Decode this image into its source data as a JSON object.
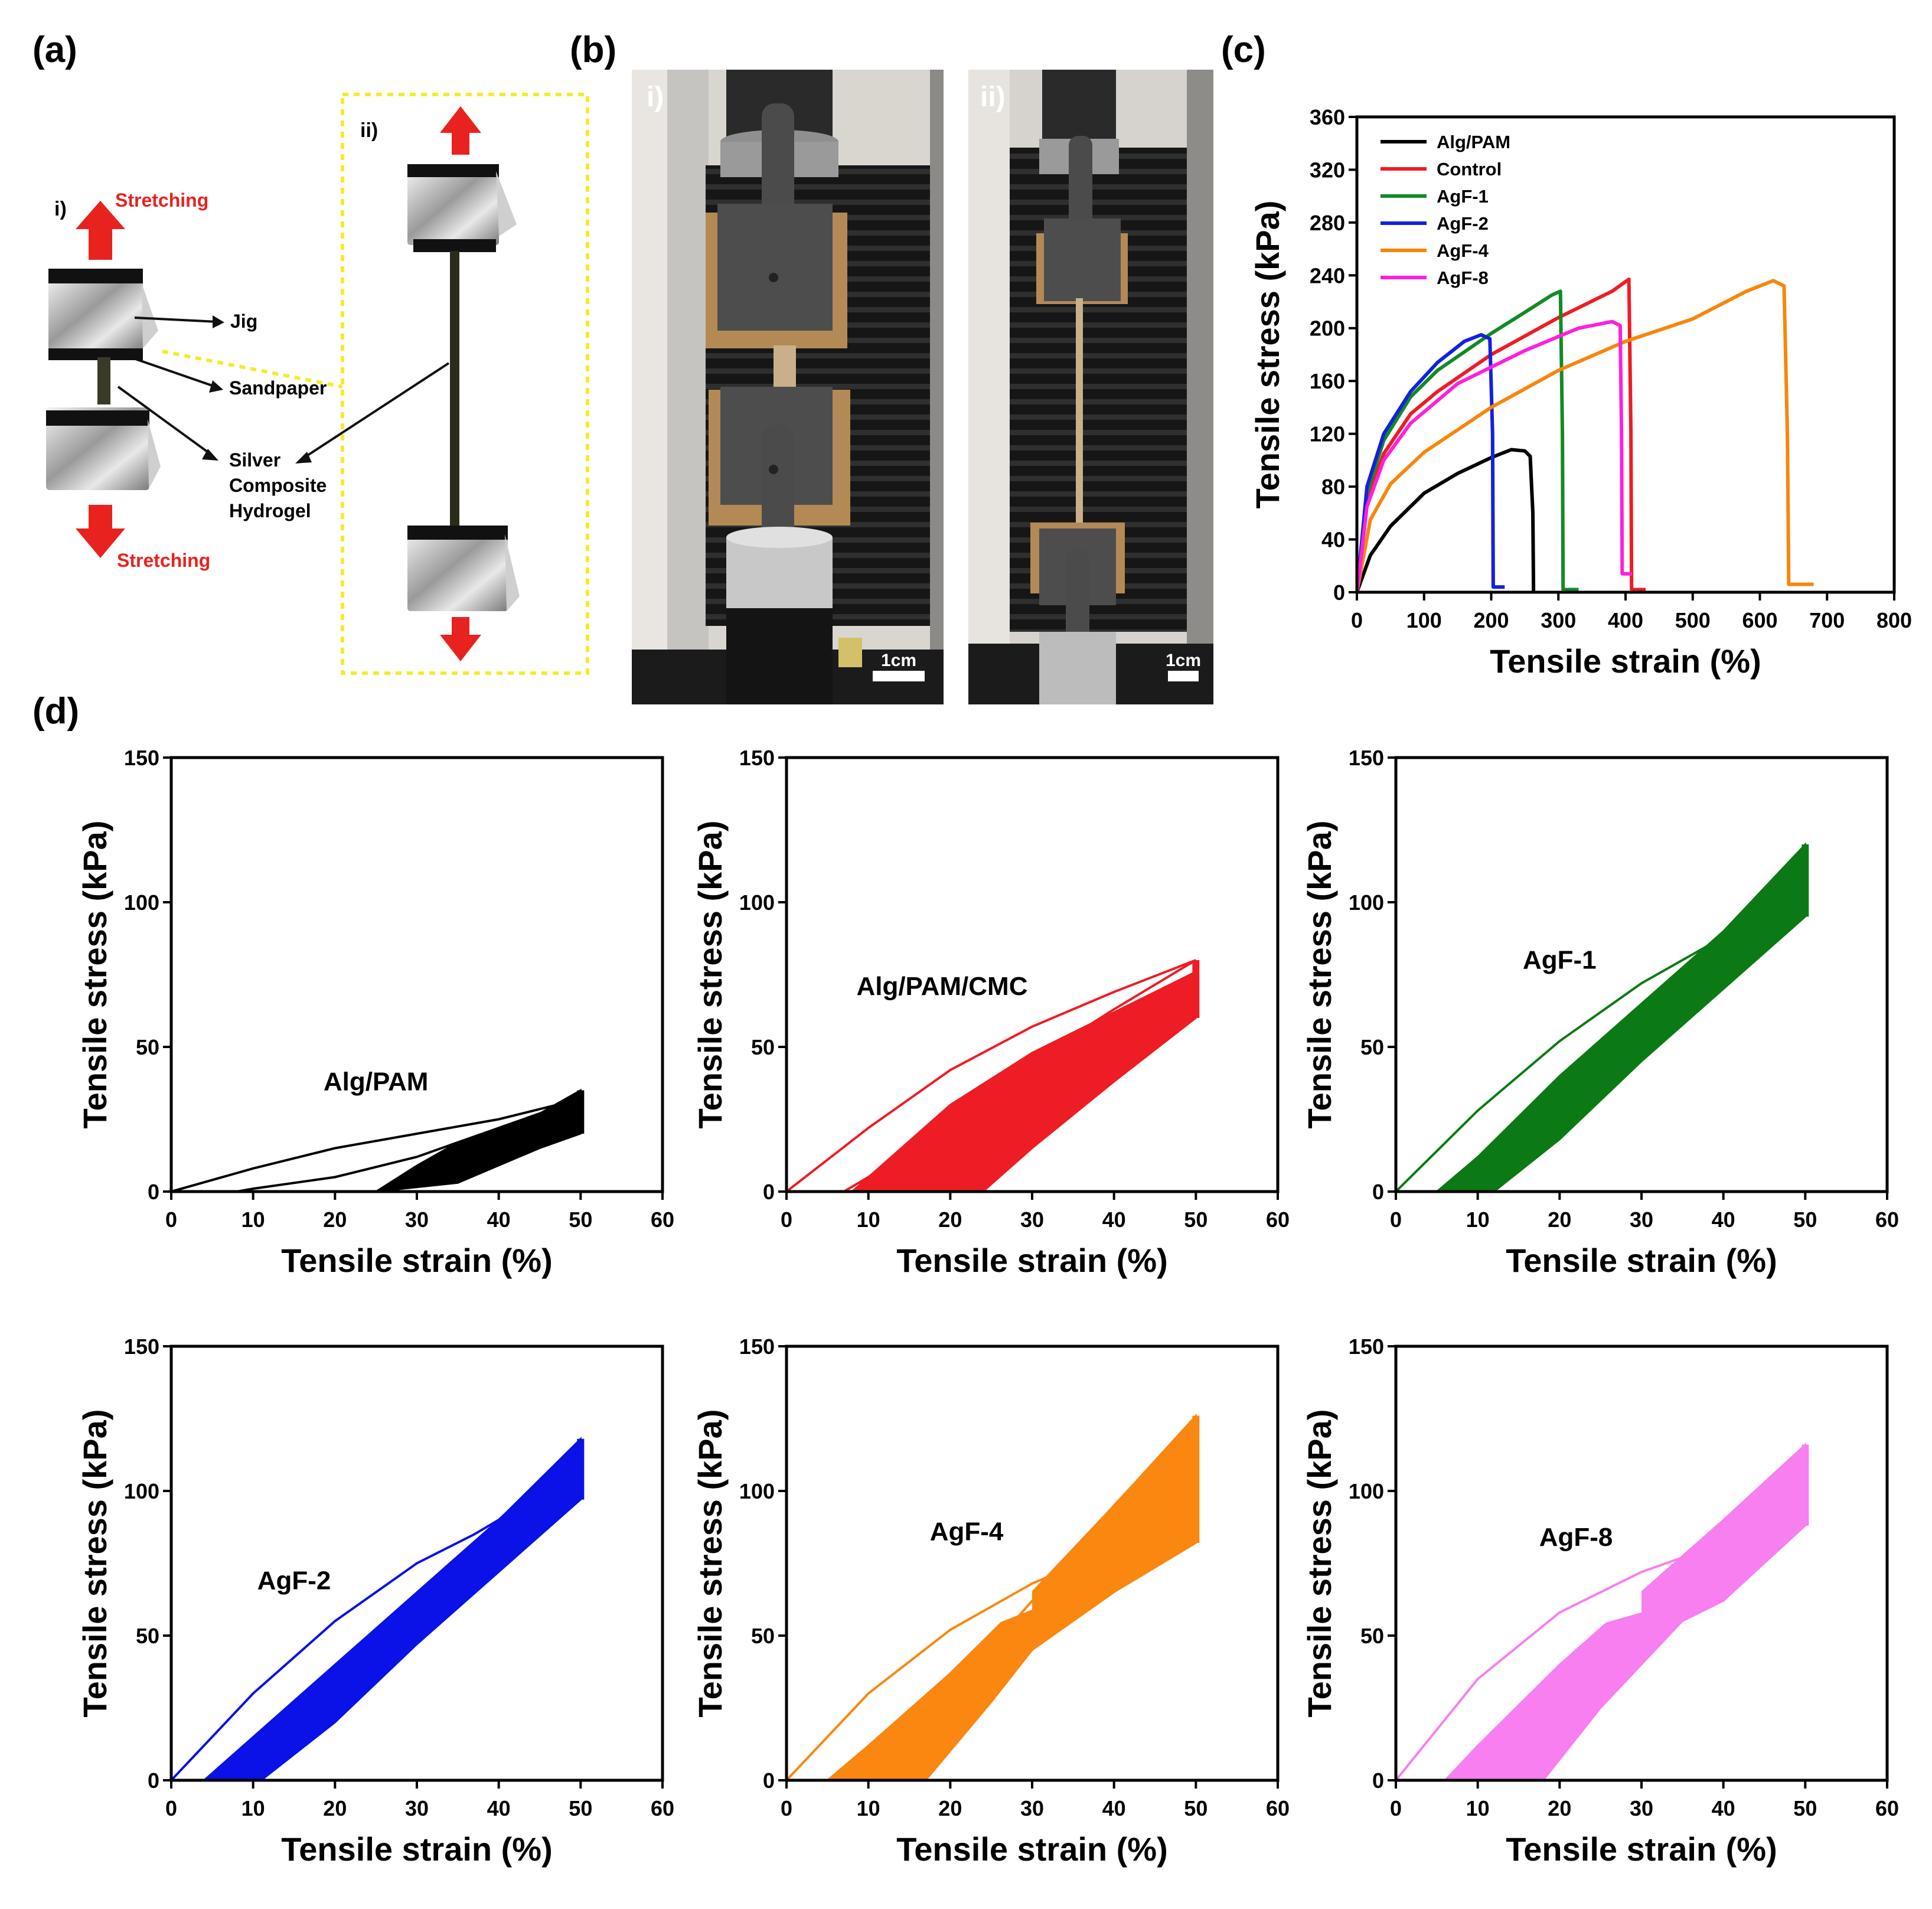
{
  "panel_labels": {
    "a": "(a)",
    "b": "(b)",
    "c": "(c)",
    "d": "(d)"
  },
  "schematic": {
    "sub_i": "i)",
    "sub_ii": "ii)",
    "stretching_top": "Stretching",
    "stretching_bottom": "Stretching",
    "jig": "Jig",
    "sandpaper": "Sandpaper",
    "silver_line1": "Silver",
    "silver_line2": "Composite",
    "silver_line3": "Hydrogel",
    "colors": {
      "arrow": "#e8231f",
      "dashed_box": "#f5ec2a"
    }
  },
  "photos": {
    "photo_i_label": "i)",
    "photo_ii_label": "ii)",
    "scale_i": "1cm",
    "scale_ii": "1cm"
  },
  "chart_data": [
    {
      "id": "c",
      "type": "line",
      "xlabel": "Tensile strain (%)",
      "ylabel": "Tensile stress (kPa)",
      "xlim": [
        0,
        800
      ],
      "ylim": [
        0,
        360
      ],
      "xticks": [
        0,
        100,
        200,
        300,
        400,
        500,
        600,
        700,
        800
      ],
      "yticks": [
        0,
        40,
        80,
        120,
        160,
        200,
        240,
        280,
        320,
        360
      ],
      "legend_position": "top-left",
      "series": [
        {
          "name": "Alg/PAM",
          "color": "#000000",
          "x": [
            0,
            20,
            50,
            100,
            150,
            200,
            230,
            250,
            258,
            262,
            263
          ],
          "y": [
            0,
            28,
            50,
            75,
            90,
            102,
            108,
            107,
            103,
            60,
            0
          ]
        },
        {
          "name": "Control",
          "color": "#ee1c24",
          "x": [
            0,
            15,
            40,
            80,
            120,
            200,
            300,
            380,
            405,
            408,
            409,
            430
          ],
          "y": [
            0,
            70,
            105,
            135,
            152,
            180,
            208,
            228,
            237,
            120,
            2,
            2
          ]
        },
        {
          "name": "AgF-1",
          "color": "#138a24",
          "x": [
            0,
            15,
            40,
            80,
            120,
            200,
            250,
            290,
            303,
            306,
            307,
            330
          ],
          "y": [
            0,
            75,
            115,
            148,
            168,
            196,
            212,
            225,
            228,
            120,
            2,
            2
          ]
        },
        {
          "name": "AgF-2",
          "color": "#1320e0",
          "x": [
            0,
            15,
            40,
            80,
            120,
            160,
            185,
            198,
            202,
            203,
            220
          ],
          "y": [
            0,
            80,
            120,
            152,
            174,
            190,
            195,
            192,
            120,
            4,
            4
          ]
        },
        {
          "name": "AgF-4",
          "color": "#f7860e",
          "x": [
            0,
            20,
            50,
            100,
            200,
            300,
            400,
            500,
            580,
            620,
            636,
            641,
            643,
            680
          ],
          "y": [
            0,
            55,
            82,
            106,
            140,
            168,
            190,
            207,
            228,
            236,
            232,
            120,
            6,
            6
          ]
        },
        {
          "name": "AgF-8",
          "color": "#ff1fdc",
          "x": [
            0,
            15,
            40,
            80,
            150,
            250,
            330,
            380,
            392,
            394,
            395,
            410
          ],
          "y": [
            0,
            65,
            100,
            128,
            158,
            183,
            200,
            205,
            202,
            120,
            14,
            14
          ]
        }
      ]
    },
    {
      "id": "d1",
      "type": "line",
      "label": "Alg/PAM",
      "color": "#000000",
      "xlabel": "Tensile strain (%)",
      "ylabel": "Tensile stress (kPa)",
      "xlim": [
        0,
        60
      ],
      "ylim": [
        0,
        150
      ],
      "xticks": [
        0,
        10,
        20,
        30,
        40,
        50,
        60
      ],
      "yticks": [
        0,
        50,
        100,
        150
      ],
      "label_at": [
        25,
        35
      ],
      "first_loading": {
        "x": [
          0,
          10,
          20,
          30,
          40,
          50
        ],
        "y": [
          0,
          8,
          15,
          20,
          25,
          32
        ]
      },
      "first_unloading": {
        "x": [
          50,
          40,
          30,
          20,
          10,
          8
        ],
        "y": [
          32,
          22,
          12,
          5,
          1,
          0
        ]
      },
      "band": {
        "lower": {
          "x": [
            6,
            15,
            25,
            35,
            45,
            50
          ],
          "y": [
            0,
            0,
            0,
            3,
            15,
            20
          ]
        },
        "upper": {
          "x": [
            25,
            30,
            35,
            40,
            45,
            50
          ],
          "y": [
            0,
            9,
            17,
            22,
            27,
            35
          ]
        }
      },
      "cycle_peaks": {
        "x": 50,
        "y_min": 20,
        "y_max": 35
      }
    },
    {
      "id": "d2",
      "type": "line",
      "label": "Alg/PAM/CMC",
      "color": "#ee1c24",
      "xlabel": "Tensile strain (%)",
      "ylabel": "Tensile stress (kPa)",
      "xlim": [
        0,
        60
      ],
      "ylim": [
        0,
        150
      ],
      "xticks": [
        0,
        10,
        20,
        30,
        40,
        50,
        60
      ],
      "yticks": [
        0,
        50,
        100,
        150
      ],
      "label_at": [
        19,
        68
      ],
      "first_loading": {
        "x": [
          0,
          10,
          20,
          30,
          40,
          50
        ],
        "y": [
          0,
          22,
          42,
          57,
          69,
          80
        ]
      },
      "first_unloading": {
        "x": [
          50,
          40,
          30,
          20,
          10,
          7
        ],
        "y": [
          80,
          63,
          45,
          25,
          5,
          0
        ]
      },
      "band": {
        "lower": {
          "x": [
            24,
            30,
            40,
            50
          ],
          "y": [
            0,
            15,
            38,
            60
          ]
        },
        "upper": {
          "x": [
            8,
            20,
            30,
            40,
            50
          ],
          "y": [
            0,
            30,
            48,
            62,
            76
          ]
        }
      },
      "cycle_peaks": {
        "x": 50,
        "y_min": 60,
        "y_max": 80
      }
    },
    {
      "id": "d3",
      "type": "line",
      "label": "AgF-1",
      "color": "#0b7a14",
      "xlabel": "Tensile strain (%)",
      "ylabel": "Tensile stress (kPa)",
      "xlim": [
        0,
        60
      ],
      "ylim": [
        0,
        150
      ],
      "xticks": [
        0,
        10,
        20,
        30,
        40,
        50,
        60
      ],
      "yticks": [
        0,
        50,
        100,
        150
      ],
      "label_at": [
        20,
        77
      ],
      "first_loading": {
        "x": [
          0,
          10,
          20,
          30,
          35,
          40,
          50
        ],
        "y": [
          0,
          28,
          52,
          72,
          80,
          88,
          118
        ]
      },
      "first_unloading": {
        "x": [
          50,
          40,
          30,
          20,
          10,
          5
        ],
        "y": [
          118,
          85,
          55,
          28,
          6,
          0
        ]
      },
      "band": {
        "lower": {
          "x": [
            12,
            20,
            30,
            40,
            50
          ],
          "y": [
            0,
            18,
            45,
            70,
            95
          ]
        },
        "upper": {
          "x": [
            5,
            10,
            20,
            30,
            40,
            50
          ],
          "y": [
            0,
            12,
            40,
            65,
            90,
            120
          ]
        }
      },
      "cycle_peaks": {
        "x": 50,
        "y_min": 95,
        "y_max": 120
      }
    },
    {
      "id": "d4",
      "type": "line",
      "label": "AgF-2",
      "color": "#0a12e8",
      "xlabel": "Tensile strain (%)",
      "ylabel": "Tensile stress (kPa)",
      "xlim": [
        0,
        60
      ],
      "ylim": [
        0,
        150
      ],
      "xticks": [
        0,
        10,
        20,
        30,
        40,
        50,
        60
      ],
      "yticks": [
        0,
        50,
        100,
        150
      ],
      "label_at": [
        15,
        66
      ],
      "first_loading": {
        "x": [
          0,
          10,
          20,
          30,
          37,
          40,
          50
        ],
        "y": [
          0,
          30,
          55,
          75,
          85,
          90,
          116
        ]
      },
      "first_unloading": {
        "x": [
          50,
          40,
          30,
          20,
          10,
          4
        ],
        "y": [
          116,
          85,
          57,
          30,
          8,
          0
        ]
      },
      "band": {
        "lower": {
          "x": [
            11,
            20,
            30,
            40,
            50
          ],
          "y": [
            0,
            20,
            47,
            72,
            97
          ]
        },
        "upper": {
          "x": [
            4,
            10,
            20,
            30,
            40,
            50
          ],
          "y": [
            0,
            15,
            40,
            65,
            90,
            118
          ]
        }
      },
      "cycle_peaks": {
        "x": 50,
        "y_min": 97,
        "y_max": 118
      }
    },
    {
      "id": "d5",
      "type": "line",
      "label": "AgF-4",
      "color": "#f98710",
      "xlabel": "Tensile strain (%)",
      "ylabel": "Tensile stress (kPa)",
      "xlim": [
        0,
        60
      ],
      "ylim": [
        0,
        150
      ],
      "xticks": [
        0,
        10,
        20,
        30,
        40,
        50,
        60
      ],
      "yticks": [
        0,
        50,
        100,
        150
      ],
      "label_at": [
        22,
        83
      ],
      "first_loading": {
        "x": [
          0,
          10,
          20,
          30,
          40,
          50
        ],
        "y": [
          0,
          30,
          52,
          68,
          80,
          88
        ]
      },
      "first_unloading": {
        "x": [
          50,
          40,
          30,
          20,
          10,
          5
        ],
        "y": [
          125,
          95,
          62,
          30,
          8,
          0
        ]
      },
      "band": {
        "lower": {
          "x": [
            17,
            25,
            30,
            40,
            50
          ],
          "y": [
            0,
            27,
            45,
            65,
            82
          ]
        },
        "upper": {
          "x": [
            5,
            10,
            20,
            30,
            40,
            50
          ],
          "y": [
            0,
            12,
            37,
            65,
            95,
            126
          ]
        }
      },
      "hole": {
        "lower": {
          "x": [
            16,
            22,
            30
          ],
          "y": [
            43,
            50,
            59
          ]
        },
        "upper": {
          "x": [
            16,
            22,
            30
          ],
          "y": [
            40,
            50,
            66
          ]
        }
      },
      "cycle_peaks": {
        "x": 50,
        "y_min": 82,
        "y_max": 126
      }
    },
    {
      "id": "d6",
      "type": "line",
      "label": "AgF-8",
      "color": "#f77ff0",
      "xlabel": "Tensile strain (%)",
      "ylabel": "Tensile stress (kPa)",
      "xlim": [
        0,
        60
      ],
      "ylim": [
        0,
        150
      ],
      "xticks": [
        0,
        10,
        20,
        30,
        40,
        50,
        60
      ],
      "yticks": [
        0,
        50,
        100,
        150
      ],
      "label_at": [
        22,
        81
      ],
      "first_loading": {
        "x": [
          0,
          10,
          20,
          30,
          38
        ],
        "y": [
          0,
          35,
          58,
          72,
          80
        ]
      },
      "first_unloading": {
        "x": [
          50,
          40,
          30,
          20,
          10,
          6
        ],
        "y": [
          115,
          82,
          55,
          28,
          6,
          0
        ]
      },
      "band": {
        "lower": {
          "x": [
            18,
            25,
            35,
            40,
            50
          ],
          "y": [
            0,
            25,
            55,
            62,
            88
          ]
        },
        "upper": {
          "x": [
            6,
            10,
            20,
            30,
            40,
            50
          ],
          "y": [
            0,
            12,
            40,
            65,
            90,
            116
          ]
        }
      },
      "hole": {
        "lower": {
          "x": [
            12,
            20,
            30
          ],
          "y": [
            40,
            50,
            58
          ]
        },
        "upper": {
          "x": [
            12,
            20,
            30
          ],
          "y": [
            38,
            50,
            66
          ]
        }
      },
      "cycle_peaks": {
        "x": 50,
        "y_min": 88,
        "y_max": 116
      }
    }
  ]
}
